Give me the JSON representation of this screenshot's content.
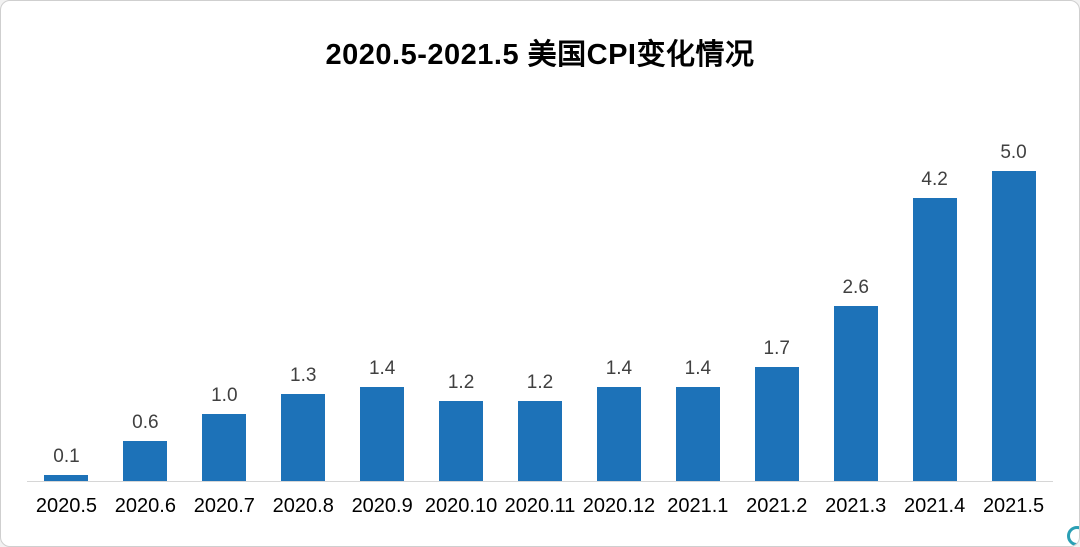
{
  "chart_data": {
    "type": "bar",
    "title": "2020.5-2021.5 美国CPI变化情况",
    "categories": [
      "2020.5",
      "2020.6",
      "2020.7",
      "2020.8",
      "2020.9",
      "2020.10",
      "2020.11",
      "2020.12",
      "2021.1",
      "2021.2",
      "2021.3",
      "2021.4",
      "2021.5"
    ],
    "values": [
      0.1,
      0.6,
      1.0,
      1.3,
      1.4,
      1.2,
      1.2,
      1.4,
      1.4,
      1.7,
      2.6,
      4.2,
      5.0
    ],
    "value_labels": [
      "0.1",
      "0.6",
      "1.0",
      "1.3",
      "1.4",
      "1.2",
      "1.2",
      "1.4",
      "1.4",
      "1.7",
      "2.6",
      "4.2",
      "5.0"
    ],
    "xlabel": "",
    "ylabel": "",
    "ylim": [
      0,
      5
    ],
    "grid": false,
    "legend": "none",
    "bar_color": "#1d72b8",
    "value_label_color": "#404040",
    "axis_line_color": "#d6d6d6"
  },
  "decor": {
    "watermark_icon_color": "#2a9fb4"
  }
}
